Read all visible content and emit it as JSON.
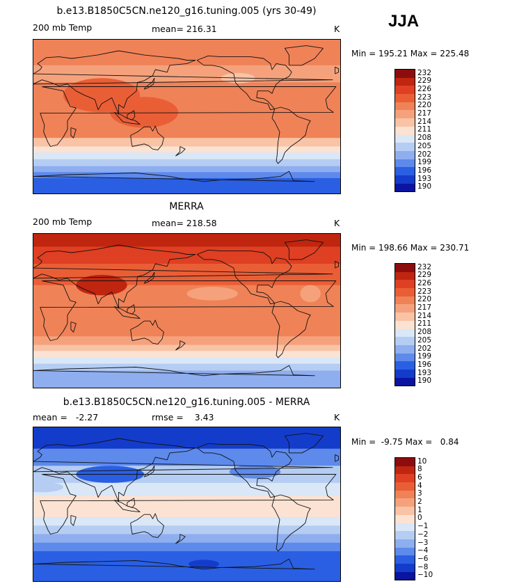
{
  "season": "JJA",
  "panels": [
    {
      "title": "b.e13.B1850C5CN.ne120_g16.tuning.005 (yrs 30-49)",
      "field": "200 mb Temp",
      "mean_text": "mean= 216.31",
      "units": "K",
      "minmax_text": "Min = 195.21 Max = 225.48",
      "colorbar_levels": [
        "232",
        "229",
        "226",
        "223",
        "220",
        "217",
        "214",
        "211",
        "208",
        "205",
        "202",
        "199",
        "196",
        "193",
        "190"
      ],
      "colorbar_colors": [
        "#8c0d0d",
        "#c0250f",
        "#df3f22",
        "#ea5e36",
        "#f08257",
        "#f5a27c",
        "#f9c3a5",
        "#fbe2d2",
        "#d9e7f7",
        "#b5cdf2",
        "#8eaeef",
        "#5d8aeb",
        "#2a5fe3",
        "#143ccb",
        "#0a14a0"
      ],
      "map": {
        "bands": [
          {
            "lat_from": 90,
            "lat_to": 60,
            "color": "#f08257"
          },
          {
            "lat_from": 60,
            "lat_to": 40,
            "color": "#f5a27c"
          },
          {
            "lat_from": 40,
            "lat_to": -25,
            "color": "#f08257"
          },
          {
            "lat_from": -25,
            "lat_to": -35,
            "color": "#f9c3a5"
          },
          {
            "lat_from": -35,
            "lat_to": -42,
            "color": "#fbe2d2"
          },
          {
            "lat_from": -42,
            "lat_to": -50,
            "color": "#d9e7f7"
          },
          {
            "lat_from": -50,
            "lat_to": -58,
            "color": "#b5cdf2"
          },
          {
            "lat_from": -58,
            "lat_to": -65,
            "color": "#8eaeef"
          },
          {
            "lat_from": -65,
            "lat_to": -72,
            "color": "#5d8aeb"
          },
          {
            "lat_from": -72,
            "lat_to": -90,
            "color": "#2a5fe3"
          }
        ],
        "blobs": [
          {
            "lon": 80,
            "lat": 25,
            "rx": 45,
            "ry": 20,
            "color": "#ea5e36"
          },
          {
            "lon": 130,
            "lat": 5,
            "rx": 40,
            "ry": 18,
            "color": "#ea5e36"
          },
          {
            "lon": -120,
            "lat": 45,
            "rx": 20,
            "ry": 6,
            "color": "#f9c3a5"
          }
        ]
      }
    },
    {
      "title": "MERRA",
      "field": "200 mb Temp",
      "mean_text": "mean= 218.58",
      "units": "K",
      "minmax_text": "Min = 198.66 Max = 230.71",
      "colorbar_levels": [
        "232",
        "229",
        "226",
        "223",
        "220",
        "217",
        "214",
        "211",
        "208",
        "205",
        "202",
        "199",
        "196",
        "193",
        "190"
      ],
      "colorbar_colors": [
        "#8c0d0d",
        "#c0250f",
        "#df3f22",
        "#ea5e36",
        "#f08257",
        "#f5a27c",
        "#f9c3a5",
        "#fbe2d2",
        "#d9e7f7",
        "#b5cdf2",
        "#8eaeef",
        "#5d8aeb",
        "#2a5fe3",
        "#143ccb",
        "#0a14a0"
      ],
      "map": {
        "bands": [
          {
            "lat_from": 90,
            "lat_to": 75,
            "color": "#c0250f"
          },
          {
            "lat_from": 75,
            "lat_to": 55,
            "color": "#df3f22"
          },
          {
            "lat_from": 55,
            "lat_to": 30,
            "color": "#ea5e36"
          },
          {
            "lat_from": 30,
            "lat_to": -30,
            "color": "#f08257"
          },
          {
            "lat_from": -30,
            "lat_to": -40,
            "color": "#f5a27c"
          },
          {
            "lat_from": -40,
            "lat_to": -47,
            "color": "#f9c3a5"
          },
          {
            "lat_from": -47,
            "lat_to": -55,
            "color": "#fbe2d2"
          },
          {
            "lat_from": -55,
            "lat_to": -62,
            "color": "#d9e7f7"
          },
          {
            "lat_from": -62,
            "lat_to": -70,
            "color": "#b5cdf2"
          },
          {
            "lat_from": -70,
            "lat_to": -90,
            "color": "#8eaeef"
          }
        ],
        "blobs": [
          {
            "lon": 80,
            "lat": 30,
            "rx": 30,
            "ry": 12,
            "color": "#c0250f"
          },
          {
            "lon": -150,
            "lat": 20,
            "rx": 30,
            "ry": 8,
            "color": "#f5a27c"
          },
          {
            "lon": -35,
            "lat": 20,
            "rx": 12,
            "ry": 10,
            "color": "#f5a27c"
          }
        ]
      }
    },
    {
      "title": "b.e13.B1850C5CN.ne120_g16.tuning.005 - MERRA",
      "field": "mean =   -2.27",
      "mean_text": "rmse =    3.43",
      "units": "K",
      "minmax_text": "Min =  -9.75 Max =   0.84",
      "colorbar_levels": [
        "10",
        "8",
        "6",
        "4",
        "3",
        "2",
        "1",
        "0",
        "−1",
        "−2",
        "−3",
        "−4",
        "−6",
        "−8",
        "−10"
      ],
      "colorbar_colors": [
        "#8c0d0d",
        "#c0250f",
        "#df3f22",
        "#ea5e36",
        "#f08257",
        "#f5a27c",
        "#f9c3a5",
        "#fbe2d2",
        "#d9e7f7",
        "#b5cdf2",
        "#8eaeef",
        "#5d8aeb",
        "#2a5fe3",
        "#143ccb",
        "#0a14a0"
      ],
      "map": {
        "bands": [
          {
            "lat_from": 90,
            "lat_to": 65,
            "color": "#143ccb"
          },
          {
            "lat_from": 65,
            "lat_to": 45,
            "color": "#5d8aeb"
          },
          {
            "lat_from": 45,
            "lat_to": 25,
            "color": "#b5cdf2"
          },
          {
            "lat_from": 25,
            "lat_to": 10,
            "color": "#d9e7f7"
          },
          {
            "lat_from": 10,
            "lat_to": -15,
            "color": "#fbe2d2"
          },
          {
            "lat_from": -15,
            "lat_to": -25,
            "color": "#d9e7f7"
          },
          {
            "lat_from": -25,
            "lat_to": -35,
            "color": "#b5cdf2"
          },
          {
            "lat_from": -35,
            "lat_to": -45,
            "color": "#8eaeef"
          },
          {
            "lat_from": -45,
            "lat_to": -55,
            "color": "#5d8aeb"
          },
          {
            "lat_from": -55,
            "lat_to": -90,
            "color": "#2a5fe3"
          }
        ],
        "blobs": [
          {
            "lon": 90,
            "lat": 35,
            "rx": 40,
            "ry": 10,
            "color": "#2a5fe3"
          },
          {
            "lon": -100,
            "lat": 38,
            "rx": 30,
            "ry": 8,
            "color": "#5d8aeb"
          },
          {
            "lon": 10,
            "lat": 20,
            "rx": 25,
            "ry": 6,
            "color": "#b5cdf2"
          },
          {
            "lon": -160,
            "lat": -70,
            "rx": 18,
            "ry": 5,
            "color": "#143ccb"
          }
        ]
      }
    }
  ]
}
